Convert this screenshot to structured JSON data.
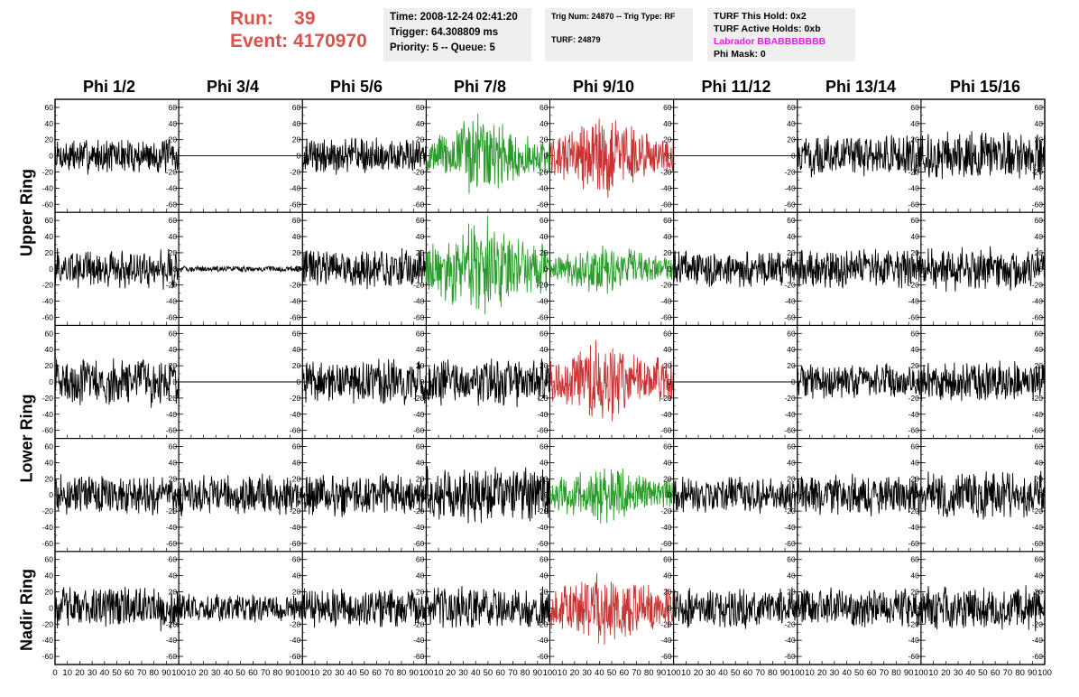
{
  "header": {
    "run_label": "Run:",
    "run_value": "39",
    "event_label": "Event:",
    "event_value": "4170970",
    "time": "Time: 2008-12-24 02:41:20",
    "trigger": "Trigger: 64.308809 ms",
    "priority": "Priority: 5 -- Queue: 5",
    "trig_num": "Trig Num: 24870 -- Trig Type: RF",
    "turf": "TURF: 24879",
    "turf_this_hold": "TURF This Hold: 0x2",
    "turf_active_holds": "TURF Active Holds: 0xb",
    "labrador": "Labrador BBABBBBBBB",
    "phi_mask": "Phi Mask: 0"
  },
  "colors": {
    "header_red": "#d9534f",
    "trace_black": "#000000",
    "trace_green": "#2a9a2a",
    "trace_red": "#c83232",
    "labrador_magenta": "#e020e0"
  },
  "chart_data": {
    "type": "line",
    "columns": [
      "Phi 1/2",
      "Phi 3/4",
      "Phi 5/6",
      "Phi 7/8",
      "Phi 9/10",
      "Phi 11/12",
      "Phi 13/14",
      "Phi 15/16"
    ],
    "ring_labels": [
      "Upper Ring",
      "Lower Ring",
      "Nadir Ring"
    ],
    "rows": 5,
    "ylim": [
      -70,
      70
    ],
    "yticks": [
      -60,
      -40,
      -20,
      0,
      20,
      40,
      60
    ],
    "xlim": [
      0,
      100
    ],
    "xticks": [
      0,
      10,
      20,
      30,
      40,
      50,
      60,
      70,
      80,
      90,
      100
    ],
    "xtick_labels": [
      "0",
      "10",
      "20",
      "30",
      "40",
      "50",
      "60",
      "70",
      "80",
      "90",
      "100"
    ],
    "panels": [
      {
        "row": 0,
        "col": 0,
        "color": "black",
        "amplitude": 18,
        "pulse": 0
      },
      {
        "row": 0,
        "col": 1,
        "color": "black",
        "amplitude": 0,
        "pulse": 0
      },
      {
        "row": 0,
        "col": 2,
        "color": "black",
        "amplitude": 18,
        "pulse": 0
      },
      {
        "row": 0,
        "col": 3,
        "color": "green",
        "amplitude": 20,
        "pulse": 25
      },
      {
        "row": 0,
        "col": 4,
        "color": "red",
        "amplitude": 22,
        "pulse": 22
      },
      {
        "row": 0,
        "col": 5,
        "color": "black",
        "amplitude": 0,
        "pulse": 0
      },
      {
        "row": 0,
        "col": 6,
        "color": "black",
        "amplitude": 20,
        "pulse": 0
      },
      {
        "row": 0,
        "col": 7,
        "color": "black",
        "amplitude": 24,
        "pulse": 0
      },
      {
        "row": 1,
        "col": 0,
        "color": "black",
        "amplitude": 20,
        "pulse": 0
      },
      {
        "row": 1,
        "col": 1,
        "color": "black",
        "amplitude": 3,
        "pulse": 0
      },
      {
        "row": 1,
        "col": 2,
        "color": "black",
        "amplitude": 20,
        "pulse": 0
      },
      {
        "row": 1,
        "col": 3,
        "color": "green",
        "amplitude": 26,
        "pulse": 28
      },
      {
        "row": 1,
        "col": 4,
        "color": "green",
        "amplitude": 14,
        "pulse": 12
      },
      {
        "row": 1,
        "col": 5,
        "color": "black",
        "amplitude": 18,
        "pulse": 0
      },
      {
        "row": 1,
        "col": 6,
        "color": "black",
        "amplitude": 20,
        "pulse": 0
      },
      {
        "row": 1,
        "col": 7,
        "color": "black",
        "amplitude": 22,
        "pulse": 0
      },
      {
        "row": 2,
        "col": 0,
        "color": "black",
        "amplitude": 24,
        "pulse": 0
      },
      {
        "row": 2,
        "col": 1,
        "color": "black",
        "amplitude": 0,
        "pulse": 0
      },
      {
        "row": 2,
        "col": 2,
        "color": "black",
        "amplitude": 22,
        "pulse": 0
      },
      {
        "row": 2,
        "col": 3,
        "color": "black",
        "amplitude": 24,
        "pulse": 0
      },
      {
        "row": 2,
        "col": 4,
        "color": "red",
        "amplitude": 24,
        "pulse": 22
      },
      {
        "row": 2,
        "col": 5,
        "color": "black",
        "amplitude": 0,
        "pulse": 0
      },
      {
        "row": 2,
        "col": 6,
        "color": "black",
        "amplitude": 18,
        "pulse": 0
      },
      {
        "row": 2,
        "col": 7,
        "color": "black",
        "amplitude": 20,
        "pulse": 0
      },
      {
        "row": 3,
        "col": 0,
        "color": "black",
        "amplitude": 20,
        "pulse": 0
      },
      {
        "row": 3,
        "col": 1,
        "color": "black",
        "amplitude": 20,
        "pulse": 0
      },
      {
        "row": 3,
        "col": 2,
        "color": "black",
        "amplitude": 22,
        "pulse": 0
      },
      {
        "row": 3,
        "col": 3,
        "color": "black",
        "amplitude": 28,
        "pulse": 0
      },
      {
        "row": 3,
        "col": 4,
        "color": "green",
        "amplitude": 16,
        "pulse": 16
      },
      {
        "row": 3,
        "col": 5,
        "color": "black",
        "amplitude": 18,
        "pulse": 0
      },
      {
        "row": 3,
        "col": 6,
        "color": "black",
        "amplitude": 22,
        "pulse": 0
      },
      {
        "row": 3,
        "col": 7,
        "color": "black",
        "amplitude": 24,
        "pulse": 0
      },
      {
        "row": 4,
        "col": 0,
        "color": "black",
        "amplitude": 22,
        "pulse": 0
      },
      {
        "row": 4,
        "col": 1,
        "color": "black",
        "amplitude": 14,
        "pulse": 0
      },
      {
        "row": 4,
        "col": 2,
        "color": "black",
        "amplitude": 20,
        "pulse": 0
      },
      {
        "row": 4,
        "col": 3,
        "color": "black",
        "amplitude": 22,
        "pulse": 0
      },
      {
        "row": 4,
        "col": 4,
        "color": "red",
        "amplitude": 22,
        "pulse": 16
      },
      {
        "row": 4,
        "col": 5,
        "color": "black",
        "amplitude": 20,
        "pulse": 0
      },
      {
        "row": 4,
        "col": 6,
        "color": "black",
        "amplitude": 20,
        "pulse": 0
      },
      {
        "row": 4,
        "col": 7,
        "color": "black",
        "amplitude": 22,
        "pulse": 0
      }
    ]
  }
}
